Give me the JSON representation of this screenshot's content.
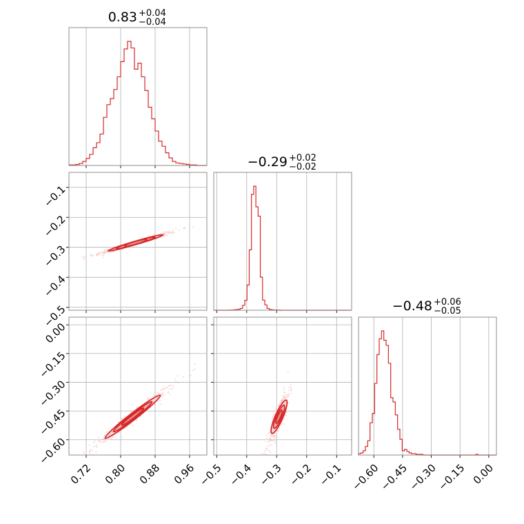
{
  "colors": {
    "accent": "#d62728",
    "fill": "#f0b6b6",
    "scatter": "#f4c3c3"
  },
  "chart_data": {
    "type": "corner",
    "parameters": [
      {
        "range": [
          0.68,
          1.0
        ],
        "ticks": [
          0.72,
          0.8,
          0.88,
          0.96
        ],
        "tick_labels": [
          "0.72",
          "0.80",
          "0.88",
          "0.96"
        ]
      },
      {
        "range": [
          -0.51,
          -0.05
        ],
        "ticks": [
          -0.5,
          -0.4,
          -0.3,
          -0.2,
          -0.1
        ],
        "tick_labels": [
          "−0.5",
          "−0.4",
          "−0.3",
          "−0.2",
          "−0.1"
        ]
      },
      {
        "range": [
          -0.68,
          0.04
        ],
        "ticks": [
          -0.6,
          -0.45,
          -0.3,
          -0.15,
          0.0
        ],
        "tick_labels": [
          "−0.60",
          "−0.45",
          "−0.30",
          "−0.15",
          "0.00"
        ]
      }
    ],
    "titles": [
      {
        "median": "0.83",
        "plus": "+0.04",
        "minus": "−0.04"
      },
      {
        "median": "−0.29",
        "plus": "+0.02",
        "minus": "−0.02"
      },
      {
        "median": "−0.48",
        "plus": "+0.06",
        "minus": "−0.05"
      }
    ],
    "histograms": [
      {
        "param": 0,
        "edges_start": 0.68,
        "bin_width": 0.008,
        "counts": [
          1,
          1,
          2,
          4,
          8,
          14,
          22,
          35,
          45,
          62,
          95,
          120,
          132,
          150,
          175,
          205,
          230,
          245,
          232,
          190,
          202,
          175,
          148,
          115,
          92,
          68,
          48,
          38,
          25,
          15,
          8,
          5,
          4,
          3,
          2,
          1,
          1,
          0,
          0,
          0
        ]
      },
      {
        "param": 1,
        "edges_start": -0.51,
        "bin_width": 0.0074,
        "counts": [
          0,
          0,
          0,
          0,
          0,
          0,
          0,
          1,
          1,
          2,
          3,
          5,
          9,
          24,
          48,
          122,
          292,
          560,
          600,
          500,
          455,
          160,
          49,
          26,
          9,
          4,
          2,
          1,
          1,
          1,
          0,
          0,
          0,
          0,
          0,
          0,
          0,
          0,
          0,
          0,
          0,
          0,
          0,
          0,
          0,
          0,
          0,
          0,
          0,
          0,
          0,
          0,
          0,
          0,
          0,
          0,
          0,
          0,
          0,
          0,
          0,
          0
        ]
      },
      {
        "param": 2,
        "edges_start": -0.68,
        "bin_width": 0.012,
        "counts": [
          2,
          3,
          6,
          12,
          20,
          45,
          58,
          100,
          140,
          162,
          173,
          160,
          153,
          128,
          80,
          74,
          56,
          36,
          22,
          6,
          8,
          5,
          3,
          2,
          2,
          1,
          1,
          1,
          0,
          0,
          0,
          0,
          0,
          0,
          0,
          0,
          0,
          0,
          0,
          0,
          0,
          0,
          0,
          0,
          0,
          0,
          0,
          0,
          0,
          0,
          0,
          1,
          0,
          0,
          0,
          0,
          0,
          0,
          0,
          0
        ]
      }
    ],
    "joint": [
      {
        "x_param": 0,
        "y_param": 1,
        "center": [
          0.835,
          -0.285
        ],
        "sd": [
          0.032,
          0.013
        ],
        "slope": 0.42
      },
      {
        "x_param": 0,
        "y_param": 2,
        "center": [
          0.828,
          -0.48
        ],
        "sd": [
          0.032,
          0.05
        ],
        "slope": 1.75
      },
      {
        "x_param": 1,
        "y_param": 2,
        "center": [
          -0.292,
          -0.48
        ],
        "sd": [
          0.012,
          0.05
        ],
        "slope": 3.6
      }
    ]
  }
}
